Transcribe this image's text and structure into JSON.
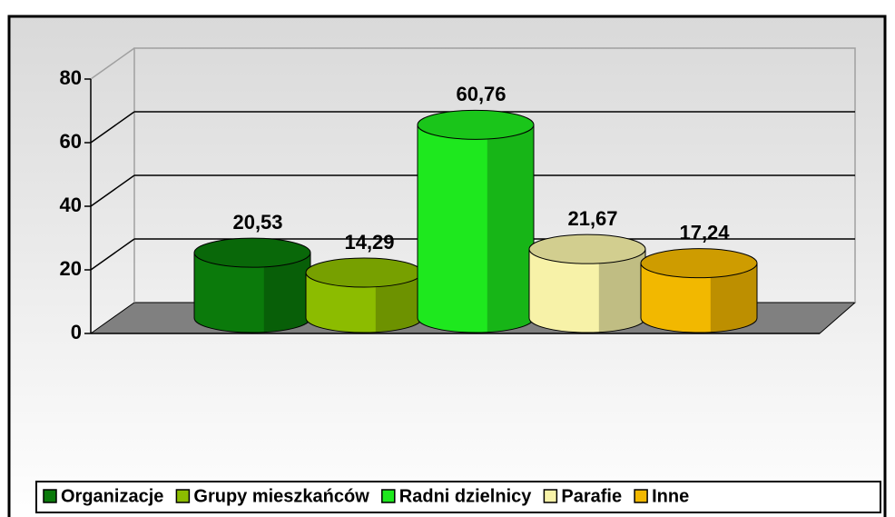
{
  "chart_data": {
    "type": "bar",
    "categories": [
      "Organizacje",
      "Grupy mieszkańców",
      "Radni dzielnicy",
      "Parafie",
      "Inne"
    ],
    "values": [
      20.53,
      14.29,
      60.76,
      21.67,
      17.24
    ],
    "value_labels": [
      "20,53",
      "14,29",
      "60,76",
      "21,67",
      "17,24"
    ],
    "colors": [
      "#0b7a0b",
      "#8cbc00",
      "#1ee81e",
      "#f7f2a8",
      "#f2b800"
    ],
    "ylim": [
      0,
      80
    ],
    "yticks": [
      0,
      20,
      40,
      60,
      80
    ],
    "grid": true
  }
}
